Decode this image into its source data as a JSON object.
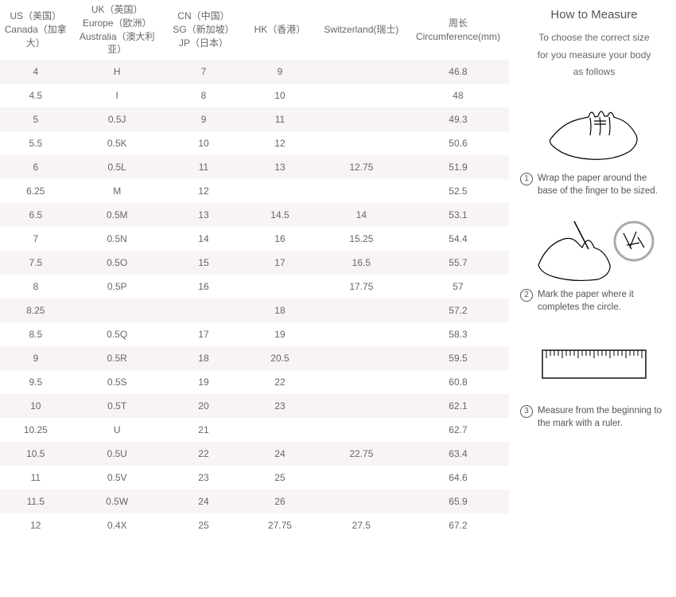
{
  "table": {
    "columns": [
      {
        "lines": [
          "US（美国）",
          "Canada（加拿大）"
        ]
      },
      {
        "lines": [
          "UK（英国）",
          "Europe（欧洲）",
          "Australia（澳大利",
          "亚）"
        ]
      },
      {
        "lines": [
          "CN（中国）",
          "SG（新加坡）",
          "JP（日本）"
        ]
      },
      {
        "lines": [
          "HK（香港）"
        ]
      },
      {
        "lines": [
          "Switzerland(瑞士)"
        ]
      },
      {
        "lines": [
          "周长",
          "Circumference(mm)"
        ]
      }
    ],
    "rows": [
      [
        "4",
        "H",
        "7",
        "9",
        "",
        "46.8"
      ],
      [
        "4.5",
        "I",
        "8",
        "10",
        "",
        "48"
      ],
      [
        "5",
        "0.5J",
        "9",
        "11",
        "",
        "49.3"
      ],
      [
        "5.5",
        "0.5K",
        "10",
        "12",
        "",
        "50.6"
      ],
      [
        "6",
        "0.5L",
        "11",
        "13",
        "12.75",
        "51.9"
      ],
      [
        "6.25",
        "M",
        "12",
        "",
        "",
        "52.5"
      ],
      [
        "6.5",
        "0.5M",
        "13",
        "14.5",
        "14",
        "53.1"
      ],
      [
        "7",
        "0.5N",
        "14",
        "16",
        "15.25",
        "54.4"
      ],
      [
        "7.5",
        "0.5O",
        "15",
        "17",
        "16.5",
        "55.7"
      ],
      [
        "8",
        "0.5P",
        "16",
        "",
        "17.75",
        "57"
      ],
      [
        "8.25",
        "",
        "",
        "18",
        "",
        "57.2"
      ],
      [
        "8.5",
        "0.5Q",
        "17",
        "19",
        "",
        "58.3"
      ],
      [
        "9",
        "0.5R",
        "18",
        "20.5",
        "",
        "59.5"
      ],
      [
        "9.5",
        "0.5S",
        "19",
        "22",
        "",
        "60.8"
      ],
      [
        "10",
        "0.5T",
        "20",
        "23",
        "",
        "62.1"
      ],
      [
        "10.25",
        "U",
        "21",
        "",
        "",
        "62.7"
      ],
      [
        "10.5",
        "0.5U",
        "22",
        "24",
        "22.75",
        "63.4"
      ],
      [
        "11",
        "0.5V",
        "23",
        "25",
        "",
        "64.6"
      ],
      [
        "11.5",
        "0.5W",
        "24",
        "26",
        "",
        "65.9"
      ],
      [
        "12",
        "0.4X",
        "25",
        "27.75",
        "27.5",
        "67.2"
      ]
    ],
    "col_widths_pct": [
      14,
      18,
      16,
      14,
      18,
      20
    ],
    "row_bg_odd": "#f7f3f6",
    "row_bg_even": "#ffffff",
    "text_color": "#666666",
    "header_fontsize_pt": 9,
    "body_fontsize_pt": 9
  },
  "guide": {
    "title": "How to Measure",
    "intro_lines": [
      "To choose the correct size",
      "for you measure your body",
      "as follows"
    ],
    "steps": [
      {
        "num": "1",
        "text": "Wrap the paper around the base of the finger to be sized."
      },
      {
        "num": "2",
        "text": "Mark the paper where it completes the circle."
      },
      {
        "num": "3",
        "text": "Measure from the beginning to the mark with a ruler."
      }
    ]
  },
  "colors": {
    "background": "#ffffff",
    "text": "#555555",
    "stroke": "#000000"
  }
}
